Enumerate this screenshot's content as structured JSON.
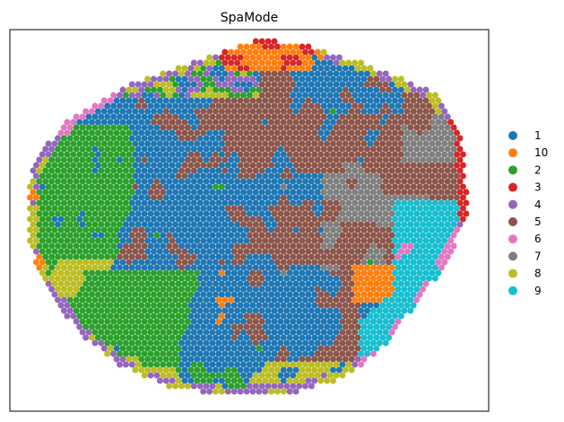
{
  "chart_data": {
    "type": "scatter",
    "title": "SpaMode",
    "xlabel": "",
    "ylabel": "",
    "grid": false,
    "axis_ticks": false,
    "legend_placement": "right",
    "series": [
      {
        "name": "1",
        "color": "#1f77b4"
      },
      {
        "name": "10",
        "color": "#ff7f0e"
      },
      {
        "name": "2",
        "color": "#2ca02c"
      },
      {
        "name": "3",
        "color": "#d62728"
      },
      {
        "name": "4",
        "color": "#9467bd"
      },
      {
        "name": "5",
        "color": "#8c564b"
      },
      {
        "name": "6",
        "color": "#e377c2"
      },
      {
        "name": "7",
        "color": "#7f7f7f"
      },
      {
        "name": "8",
        "color": "#bcbd22"
      },
      {
        "name": "9",
        "color": "#17becf"
      }
    ]
  }
}
